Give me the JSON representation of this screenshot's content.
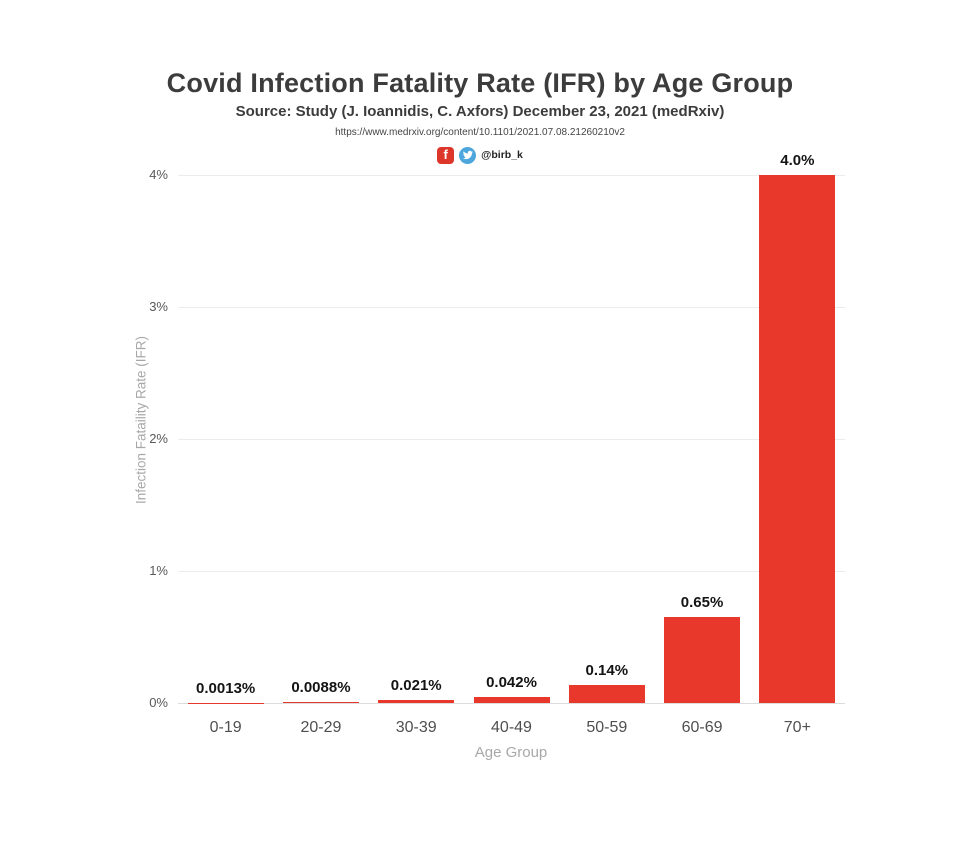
{
  "header": {
    "title": "Covid Infection Fatality Rate (IFR) by Age Group",
    "subtitle": "Source: Study (J. Ioannidis, C. Axfors) December 23, 2021 (medRxiv)",
    "source_url": "https://www.medrxiv.org/content/10.1101/2021.07.08.21260210v2",
    "social": {
      "handle": "@birb_k",
      "facebook_icon": "facebook-f",
      "twitter_icon": "twitter-bird",
      "facebook_color": "#dd372c",
      "twitter_color": "#4da7dc"
    }
  },
  "chart_data": {
    "type": "bar",
    "title": "Covid Infection Fatality Rate (IFR) by Age Group",
    "categories": [
      "0-19",
      "20-29",
      "30-39",
      "40-49",
      "50-59",
      "60-69",
      "70+"
    ],
    "values": [
      0.0013,
      0.0088,
      0.021,
      0.042,
      0.14,
      0.65,
      4.0
    ],
    "bar_labels": [
      "0.0013%",
      "0.0088%",
      "0.021%",
      "0.042%",
      "0.14%",
      "0.65%",
      "4.0%"
    ],
    "xlabel": "Age Group",
    "ylabel": "Infection Fataility Rate (IFR)",
    "y_ticks": [
      "0%",
      "1%",
      "2%",
      "3%",
      "4%"
    ],
    "y_tick_values": [
      0,
      1,
      2,
      3,
      4
    ],
    "ylim": [
      0,
      4
    ],
    "grid": "horizontal",
    "legend": "none",
    "bar_color": "#e8382c"
  },
  "style": {
    "background": "#ffffff",
    "title_color": "#3c3c3c",
    "axis_text_color": "#595959",
    "axis_title_color": "#a8a8a8",
    "gridline_color": "#ececec",
    "baseline_color": "#dcdcdc",
    "value_label_color": "#141414"
  }
}
